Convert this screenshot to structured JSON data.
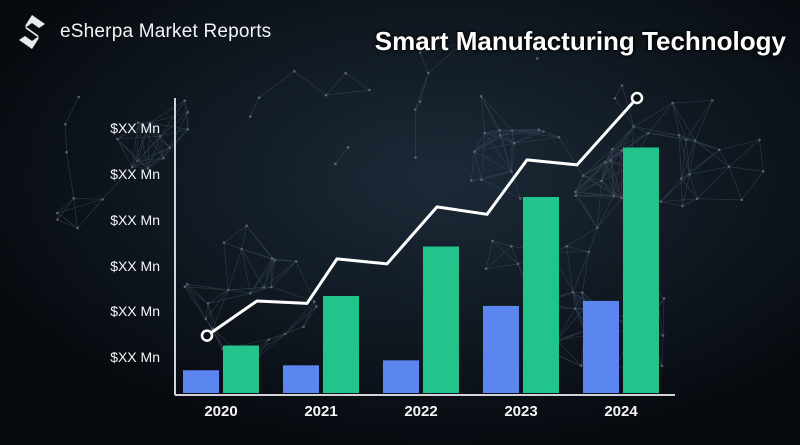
{
  "header": {
    "brand_name": "eSherpa Market Reports",
    "brand_icon": "esherpa-logo-icon",
    "title": "Smart Manufacturing Technology"
  },
  "colors": {
    "background": "#0b1218",
    "series_blue": "#5b86f0",
    "series_green": "#22c48c",
    "trend_line": "#ffffff",
    "axis": "#d0d4d8"
  },
  "chart_data": {
    "type": "bar",
    "categories": [
      "2020",
      "2021",
      "2022",
      "2023",
      "2024"
    ],
    "y_tick_labels": [
      "$XX Mn",
      "$XX Mn",
      "$XX Mn",
      "$XX Mn",
      "$XX Mn",
      "$XX Mn"
    ],
    "series": [
      {
        "values": [
          10,
          12,
          14,
          36,
          38
        ]
      },
      {
        "values": [
          20,
          40,
          60,
          80,
          100
        ]
      }
    ],
    "trend_line": [
      {
        "x": 2020.0,
        "y": 24
      },
      {
        "x": 2020.5,
        "y": 38
      },
      {
        "x": 2021.0,
        "y": 37
      },
      {
        "x": 2021.3,
        "y": 55
      },
      {
        "x": 2021.8,
        "y": 53
      },
      {
        "x": 2022.3,
        "y": 76
      },
      {
        "x": 2022.8,
        "y": 73
      },
      {
        "x": 2023.2,
        "y": 95
      },
      {
        "x": 2023.7,
        "y": 93
      },
      {
        "x": 2024.3,
        "y": 120
      }
    ],
    "ylim": [
      0,
      120
    ],
    "xlabel": "",
    "ylabel": "",
    "grid": false,
    "legend": "none"
  }
}
